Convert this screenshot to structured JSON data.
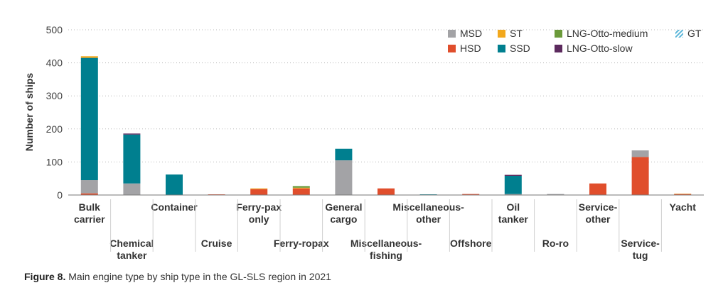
{
  "chart_data": {
    "type": "bar",
    "stacked": true,
    "ylabel": "Number of ships",
    "ylim": [
      0,
      500
    ],
    "yticks": [
      0,
      100,
      200,
      300,
      400,
      500
    ],
    "grid": true,
    "legend_position": "top-right",
    "categories": [
      [
        "Bulk",
        "carrier"
      ],
      [
        "Chemical",
        "tanker"
      ],
      [
        "Container"
      ],
      [
        "Cruise"
      ],
      [
        "Ferry-pax",
        "only"
      ],
      [
        "Ferry-ropax"
      ],
      [
        "General",
        "cargo"
      ],
      [
        "Miscellaneous-",
        "fishing"
      ],
      [
        "Miscellaneous-",
        "other"
      ],
      [
        "Offshore"
      ],
      [
        "Oil",
        "tanker"
      ],
      [
        "Ro-ro"
      ],
      [
        "Service-",
        "other"
      ],
      [
        "Service-",
        "tug"
      ],
      [
        "Yacht"
      ]
    ],
    "series": [
      {
        "name": "HSD",
        "color": "#e04e2c",
        "values": [
          5,
          0,
          0,
          2,
          18,
          20,
          0,
          20,
          0,
          3,
          0,
          0,
          35,
          115,
          3
        ]
      },
      {
        "name": "MSD",
        "color": "#a3a3a6",
        "values": [
          40,
          35,
          0,
          0,
          0,
          0,
          105,
          0,
          0,
          0,
          3,
          3,
          0,
          20,
          0
        ]
      },
      {
        "name": "SSD",
        "color": "#007f8f",
        "values": [
          370,
          148,
          62,
          0,
          0,
          0,
          35,
          0,
          2,
          0,
          55,
          0,
          0,
          0,
          0
        ]
      },
      {
        "name": "ST",
        "color": "#f2a81d",
        "values": [
          5,
          0,
          0,
          0,
          2,
          2,
          0,
          0,
          0,
          0,
          0,
          0,
          0,
          0,
          1
        ]
      },
      {
        "name": "LNG-Otto-medium",
        "color": "#6b9a3a",
        "values": [
          0,
          0,
          0,
          0,
          0,
          5,
          0,
          0,
          0,
          0,
          0,
          0,
          0,
          0,
          0
        ]
      },
      {
        "name": "LNG-Otto-slow",
        "color": "#5c2a5e",
        "values": [
          0,
          3,
          0,
          0,
          0,
          0,
          0,
          0,
          0,
          0,
          3,
          0,
          0,
          0,
          0
        ]
      },
      {
        "name": "GT",
        "color": "#5bb6d9",
        "values": [
          0,
          0,
          0,
          0,
          0,
          0,
          0,
          0,
          0,
          0,
          0,
          0,
          0,
          0,
          0
        ]
      }
    ],
    "legend_order": [
      "MSD",
      "ST",
      "LNG-Otto-medium",
      "GT",
      "HSD",
      "SSD",
      "LNG-Otto-slow"
    ]
  },
  "caption": {
    "label": "Figure 8.",
    "text": "Main engine type by ship type in the GL-SLS region in 2021"
  }
}
